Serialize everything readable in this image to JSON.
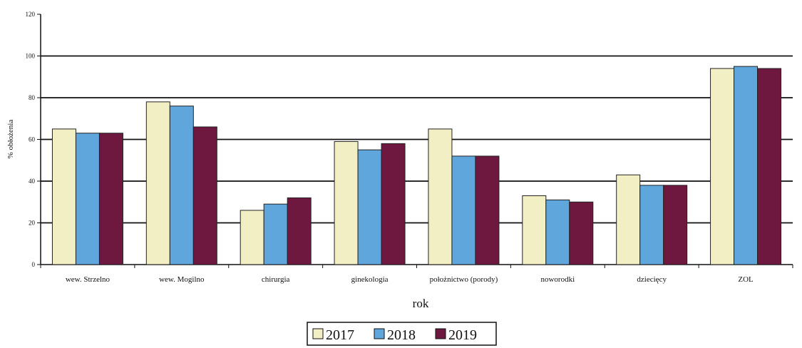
{
  "chart_data": {
    "type": "bar",
    "title": "",
    "xlabel": "rok",
    "ylabel": "% obłożenia",
    "ylim": [
      0,
      120
    ],
    "yticks": [
      0,
      20,
      40,
      60,
      80,
      100,
      120
    ],
    "grid": true,
    "legend_position": "bottom-center",
    "categories": [
      "wew. Strzelno",
      "wew. Mogilno",
      "chirurgia",
      "ginekologia",
      "położnictwo (porody)",
      "noworodki",
      "dziecięcy",
      "ZOL"
    ],
    "series": [
      {
        "name": "2017",
        "color": "#f3efc4",
        "values": [
          65,
          78,
          26,
          59,
          65,
          33,
          43,
          94
        ]
      },
      {
        "name": "2018",
        "color": "#5fa6dc",
        "values": [
          63,
          76,
          29,
          55,
          52,
          31,
          38,
          95
        ]
      },
      {
        "name": "2019",
        "color": "#6e1840",
        "values": [
          63,
          66,
          32,
          58,
          52,
          30,
          38,
          94
        ]
      }
    ]
  }
}
